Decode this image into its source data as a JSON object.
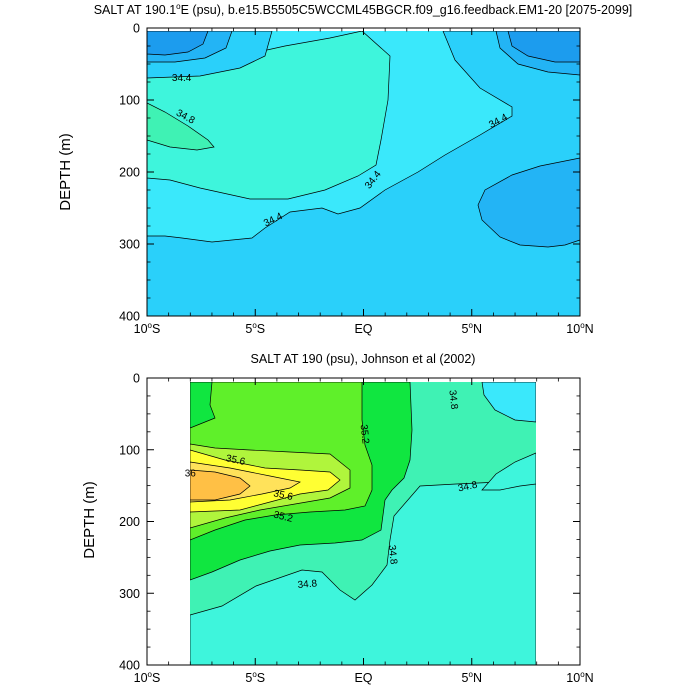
{
  "chart_data": [
    {
      "type": "contour",
      "title": "SALT AT 190.1",
      "title_sup": "o",
      "title_tail": "E (psu), b.e15.B5505C5WCCML45BGCR.f09_g16.feedback.EM1-20 [2075-2099]",
      "xlabel": "",
      "ylabel": "DEPTH (m)",
      "xlim": [
        -10,
        10
      ],
      "ylim": [
        400,
        0
      ],
      "x_ticks": [
        {
          "value": -10,
          "num": "10",
          "deg": "o",
          "hemi": "S"
        },
        {
          "value": -5,
          "num": "5",
          "deg": "o",
          "hemi": "S"
        },
        {
          "value": 0,
          "num": "EQ",
          "deg": "",
          "hemi": ""
        },
        {
          "value": 5,
          "num": "5",
          "deg": "o",
          "hemi": "N"
        },
        {
          "value": 10,
          "num": "10",
          "deg": "o",
          "hemi": "N"
        }
      ],
      "y_ticks": [
        "0",
        "100",
        "200",
        "300",
        "400"
      ],
      "y_tick_values": [
        0,
        100,
        200,
        300,
        400
      ],
      "contour_labels": [
        {
          "text": "34.4",
          "x": -8.4,
          "y": 68,
          "angle": 0
        },
        {
          "text": "34.8",
          "x": -8.2,
          "y": 122,
          "angle": 28
        },
        {
          "text": "34.4",
          "x": 6.2,
          "y": 128,
          "angle": -28
        },
        {
          "text": "34.4",
          "x": 0.4,
          "y": 210,
          "angle": -52
        },
        {
          "text": "34.4",
          "x": -4.2,
          "y": 265,
          "angle": -26
        }
      ],
      "fill_levels": [
        {
          "name": "fill-below-34.0",
          "color": "#1c9cee"
        },
        {
          "name": "fill-34.0-34.2",
          "color": "#23b4f5"
        },
        {
          "name": "fill-34.2-34.4",
          "color": "#2ad0fa"
        },
        {
          "name": "fill-34.4-34.6",
          "color": "#3ae8fb"
        },
        {
          "name": "fill-34.6-34.8",
          "color": "#3ef5dc"
        },
        {
          "name": "fill-34.8-35.0",
          "color": "#3ff2b4"
        }
      ]
    },
    {
      "type": "contour",
      "title": "SALT AT 190 (psu), Johnson et al (2002)",
      "xlabel": "",
      "ylabel": "DEPTH (m)",
      "xlim": [
        -10,
        10
      ],
      "ylim": [
        400,
        0
      ],
      "data_x_range": [
        -8,
        8
      ],
      "data_y_range": [
        10,
        400
      ],
      "x_ticks": [
        {
          "value": -10,
          "num": "10",
          "deg": "o",
          "hemi": "S"
        },
        {
          "value": -5,
          "num": "5",
          "deg": "o",
          "hemi": "S"
        },
        {
          "value": 0,
          "num": "EQ",
          "deg": "",
          "hemi": ""
        },
        {
          "value": 5,
          "num": "5",
          "deg": "o",
          "hemi": "N"
        },
        {
          "value": 10,
          "num": "10",
          "deg": "o",
          "hemi": "N"
        }
      ],
      "y_ticks": [
        "0",
        "100",
        "200",
        "300",
        "400"
      ],
      "y_tick_values": [
        0,
        100,
        200,
        300,
        400
      ],
      "contour_labels": [
        {
          "text": "34.8",
          "x": 4.2,
          "y": 30,
          "angle": 84
        },
        {
          "text": "35.2",
          "x": 0.1,
          "y": 78,
          "angle": 84
        },
        {
          "text": "35.6",
          "x": -5.9,
          "y": 113,
          "angle": 12
        },
        {
          "text": "36",
          "x": -8.0,
          "y": 132,
          "angle": 0
        },
        {
          "text": "35.6",
          "x": -3.7,
          "y": 162,
          "angle": 12
        },
        {
          "text": "34.8",
          "x": 4.8,
          "y": 150,
          "angle": -12
        },
        {
          "text": "35.2",
          "x": -3.7,
          "y": 192,
          "angle": 14
        },
        {
          "text": "34.8",
          "x": 1.4,
          "y": 246,
          "angle": 84
        },
        {
          "text": "34.8",
          "x": -2.6,
          "y": 286,
          "angle": -5
        }
      ],
      "fill_levels": [
        {
          "name": "fill-34.6-34.8",
          "color": "#3ef5dc"
        },
        {
          "name": "fill-34.8-35.0",
          "color": "#3ff2b4"
        },
        {
          "name": "fill-35.0-35.2",
          "color": "#10e640"
        },
        {
          "name": "fill-35.2-35.4",
          "color": "#5ff02a"
        },
        {
          "name": "fill-35.4-35.6",
          "color": "#b0f53c"
        },
        {
          "name": "fill-35.6-35.8",
          "color": "#ffff33"
        },
        {
          "name": "fill-35.8-36.0",
          "color": "#ffe25a"
        },
        {
          "name": "fill-above-36.0",
          "color": "#ffc045"
        }
      ]
    }
  ]
}
